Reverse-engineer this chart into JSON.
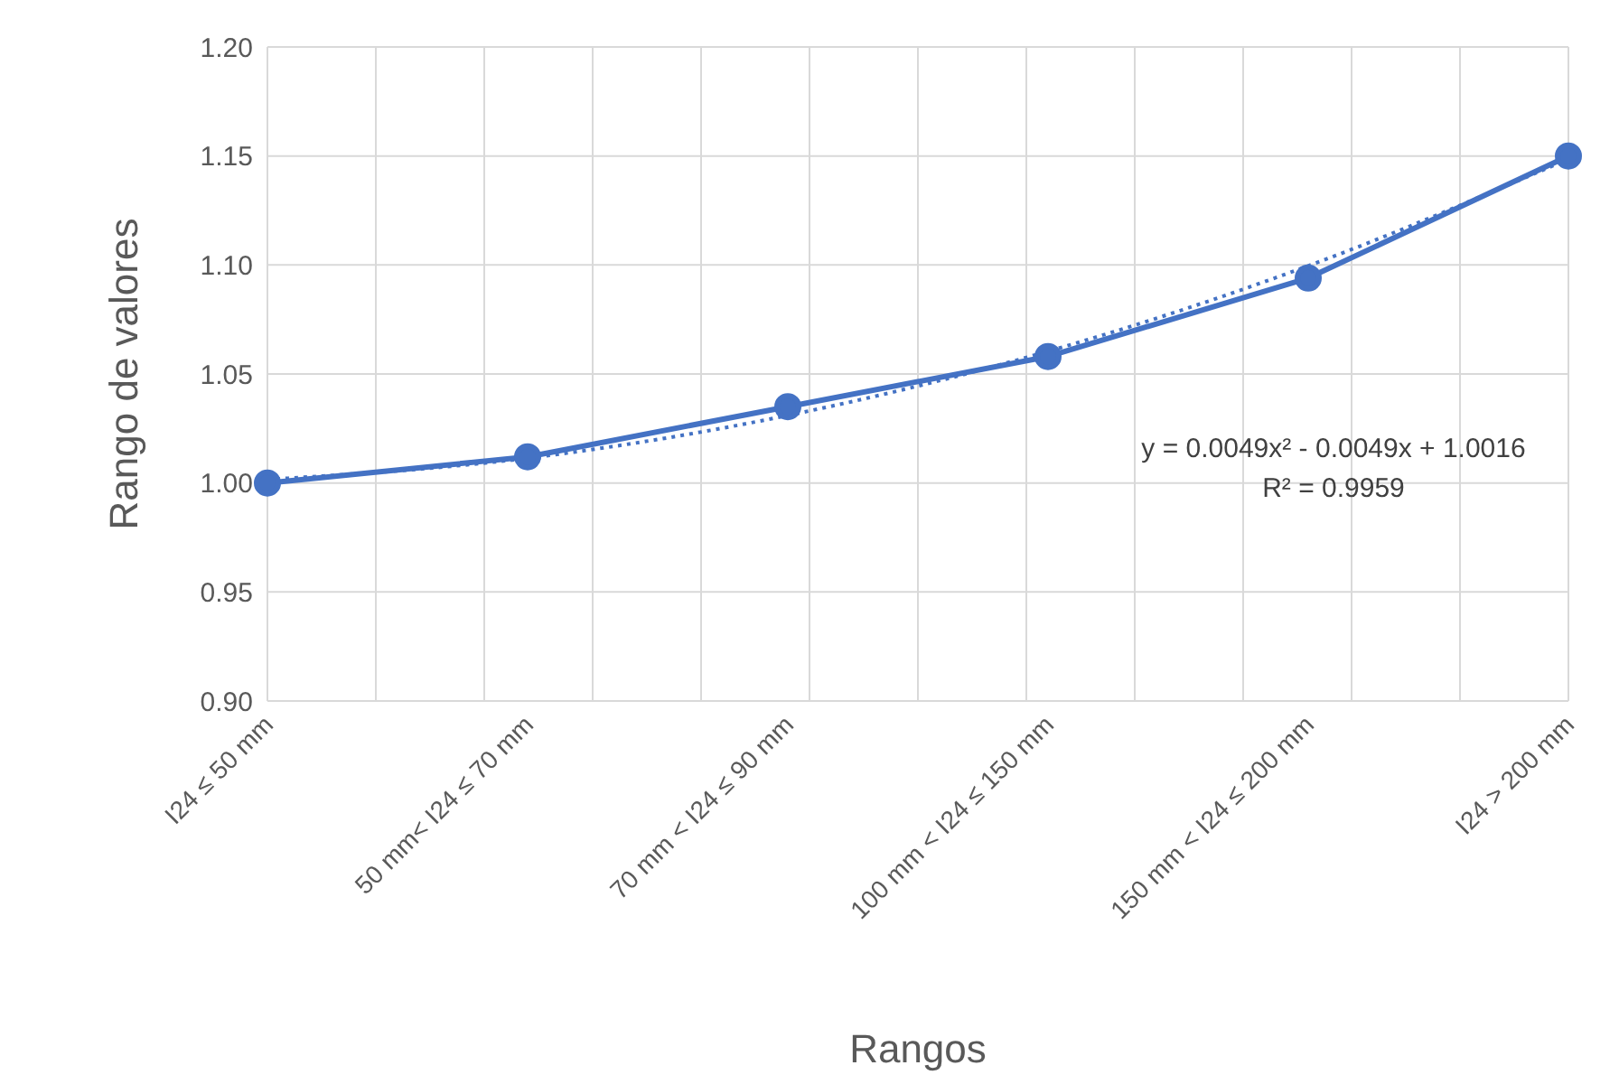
{
  "chart_data": {
    "type": "line",
    "xlabel": "Rangos",
    "ylabel": "Rango de valores",
    "categories": [
      "I24 ≤  50 mm",
      "50 mm< I24 ≤ 70 mm",
      "70 mm < I24 ≤ 90 mm",
      "100 mm < I24 ≤ 150 mm",
      "150 mm < I24 ≤  200 mm",
      "I24 > 200 mm"
    ],
    "series": [
      {
        "color": "#4472c4",
        "values": [
          1.0,
          1.012,
          1.035,
          1.058,
          1.094,
          1.15
        ],
        "marker": "circle",
        "line_style": "solid"
      },
      {
        "color": "#4472c4",
        "values": [
          1.0016,
          1.0114,
          1.031,
          1.0604,
          1.0996,
          1.1486
        ],
        "marker": "none",
        "line_style": "dotted"
      }
    ],
    "ylim": [
      0.9,
      1.2
    ],
    "yticks": [
      {
        "value": 0.9,
        "label": "0.90"
      },
      {
        "value": 0.95,
        "label": "0.95"
      },
      {
        "value": 1.0,
        "label": "1.00"
      },
      {
        "value": 1.05,
        "label": "1.05"
      },
      {
        "value": 1.1,
        "label": "1.10"
      },
      {
        "value": 1.15,
        "label": "1.15"
      },
      {
        "value": 1.2,
        "label": "1.20"
      }
    ],
    "grid": true,
    "annotations": [
      "y = 0.0049x² - 0.0049x + 1.0016",
      "R² = 0.9959"
    ]
  }
}
